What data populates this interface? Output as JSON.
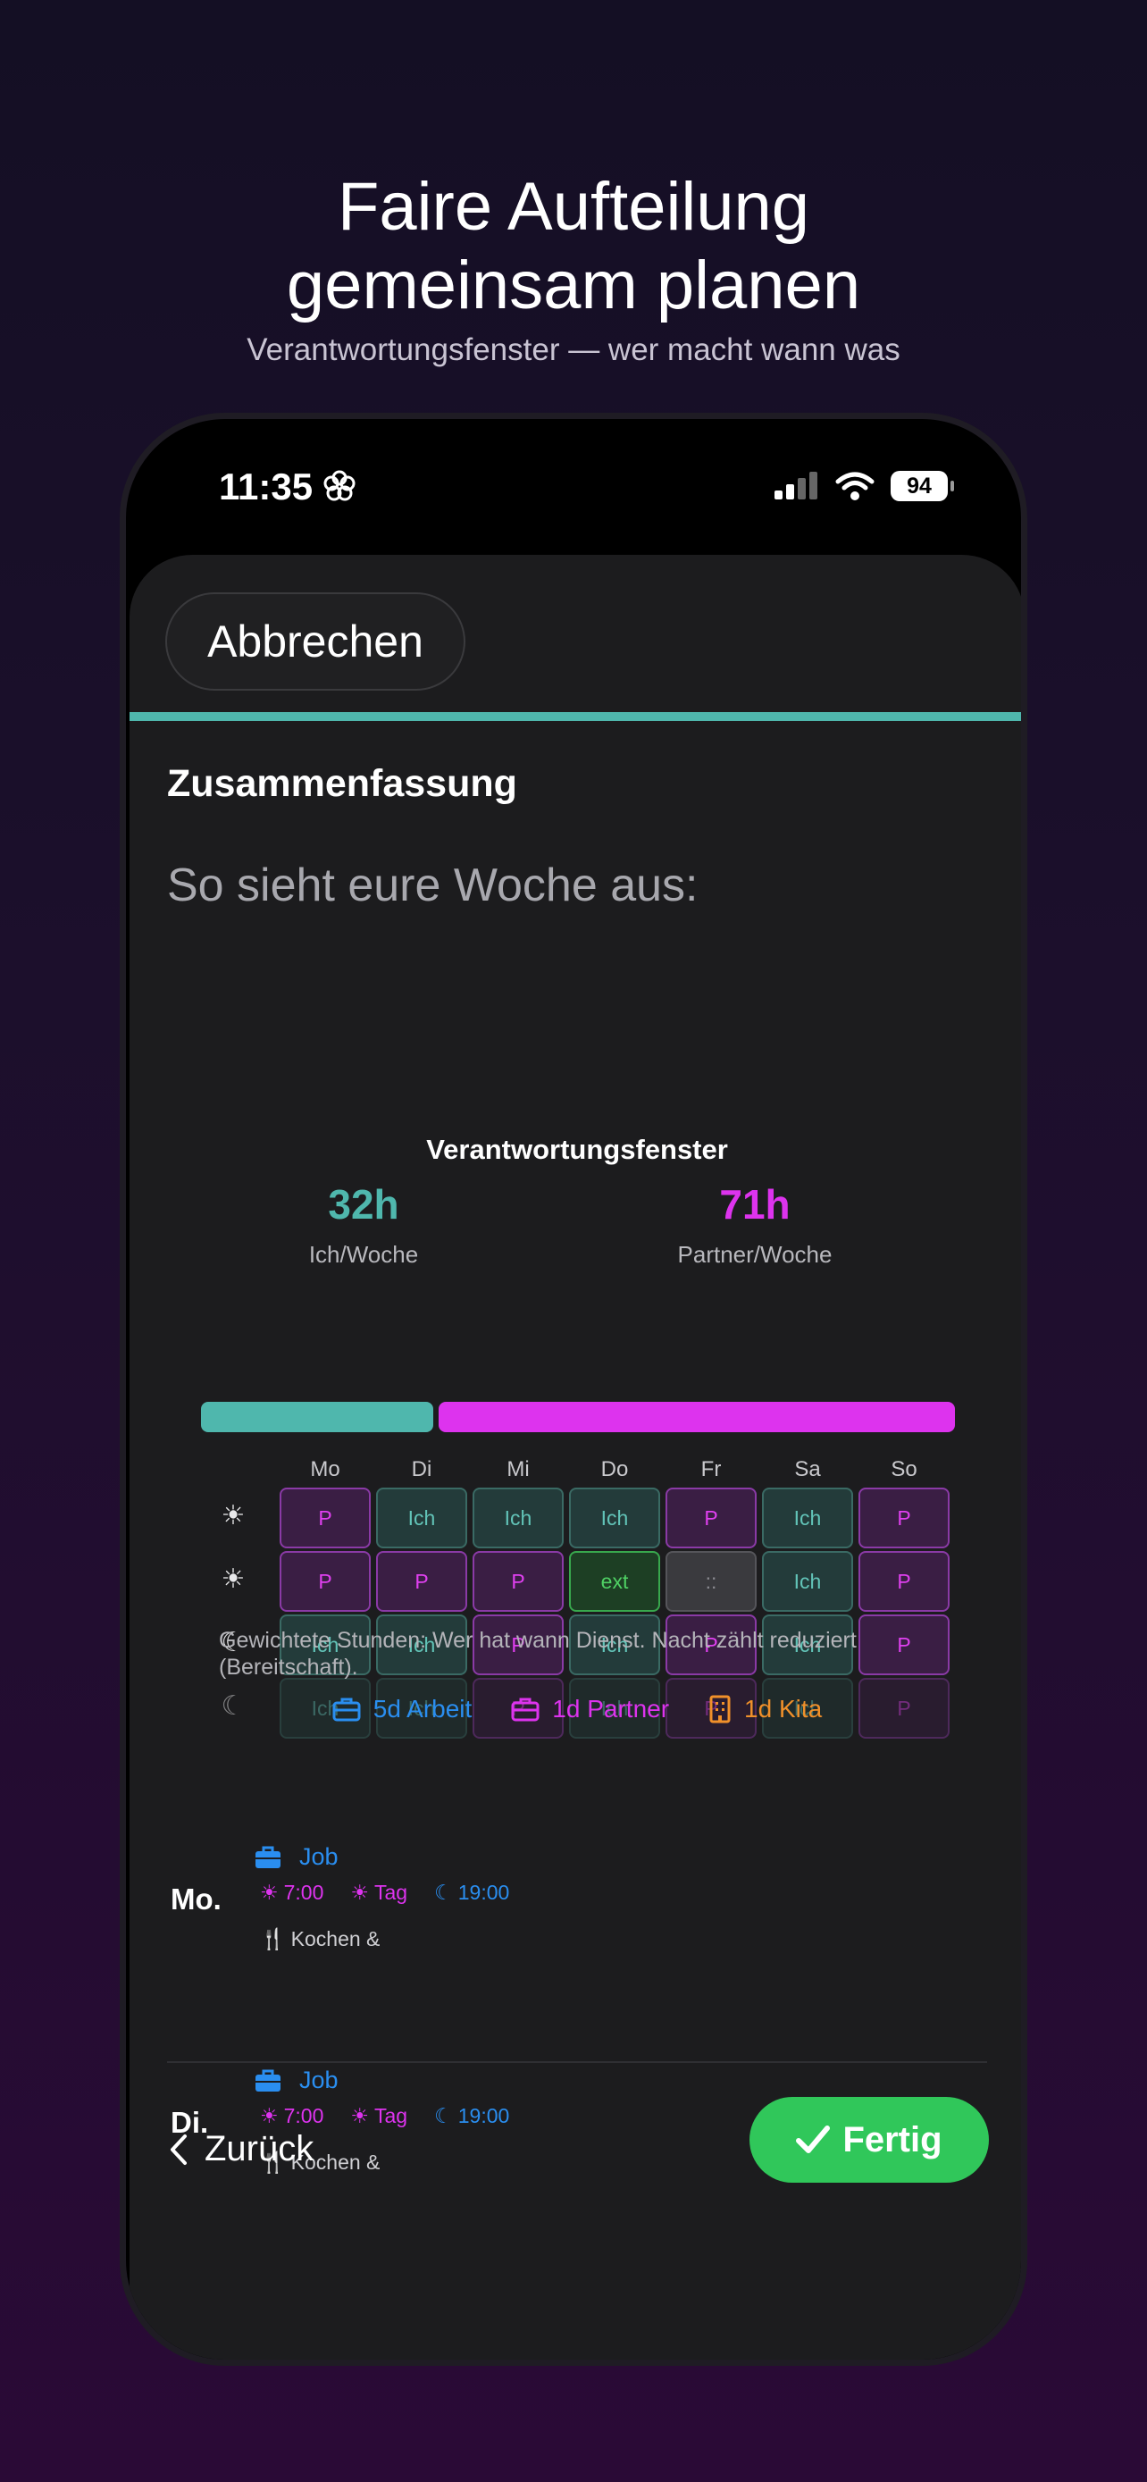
{
  "promo": {
    "headline_line1": "Faire Aufteilung",
    "headline_line2": "gemeinsam planen",
    "subhead": "Verantwortungsfenster — wer macht wann was"
  },
  "status_bar": {
    "time": "11:35",
    "battery": "94"
  },
  "sheet": {
    "cancel_label": "Abbrechen",
    "section_title": "Zusammenfassung",
    "lead": "So sieht eure Woche aus:"
  },
  "card": {
    "title": "Verantwortungsfenster",
    "me": {
      "value": "32h",
      "label": "Ich/Woche",
      "color": "#4fb7ad"
    },
    "partner": {
      "value": "71h",
      "label": "Partner/Woche",
      "color": "#dd33ee"
    },
    "split": {
      "me_hours": 32,
      "partner_hours": 71
    },
    "days": [
      "Mo",
      "Di",
      "Mi",
      "Do",
      "Fr",
      "Sa",
      "So"
    ],
    "rows": [
      {
        "icon": "sunrise-icon",
        "glyph": "☀",
        "cells": [
          "P",
          "Ich",
          "Ich",
          "Ich",
          "P",
          "Ich",
          "P"
        ]
      },
      {
        "icon": "sun-icon",
        "glyph": "☀",
        "cells": [
          "P",
          "P",
          "P",
          "ext",
          "::",
          "Ich",
          "P"
        ]
      },
      {
        "icon": "evening-moon-icon",
        "glyph": "☾",
        "cells": [
          "Ich",
          "Ich",
          "P",
          "Ich",
          "P",
          "Ich",
          "P"
        ]
      },
      {
        "icon": "night-moon-icon",
        "glyph": "☾",
        "cells": [
          "Ich",
          "Ich",
          "P",
          "Ich",
          "P",
          "Ich",
          "P"
        ],
        "dim": true
      }
    ],
    "note": "Gewichtete Stunden: Wer hat wann Dienst. Nacht zählt reduziert (Bereitschaft).",
    "legend": [
      {
        "icon": "briefcase-icon",
        "label": "5d Arbeit",
        "color": "#2a8ef0"
      },
      {
        "icon": "briefcase-icon",
        "label": "1d Partner",
        "color": "#dd33ee"
      },
      {
        "icon": "building-icon",
        "label": "1d Kita",
        "color": "#f0902a"
      }
    ]
  },
  "schedule": [
    {
      "day": "Mo.",
      "job": "Job",
      "morning": "7:00",
      "day_label": "Tag",
      "evening": "19:00",
      "meal": "Kochen &"
    },
    {
      "day": "Di.",
      "job": "Job",
      "morning": "7:00",
      "day_label": "Tag",
      "evening": "19:00",
      "meal": "Kochen &"
    }
  ],
  "footer": {
    "back_label": "Zurück",
    "done_label": "Fertig"
  }
}
